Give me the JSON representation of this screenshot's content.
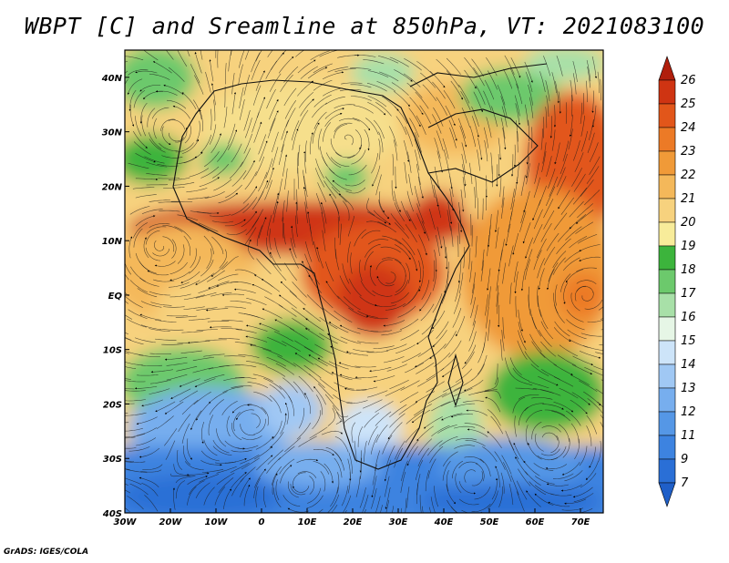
{
  "title": "WBPT [C] and Sreamline at 850hPa, VT: 2021083100",
  "credit": "GrADS: IGES/COLA",
  "map": {
    "lon_range": [
      -30,
      75
    ],
    "lat_range": [
      -40,
      45
    ],
    "lon_ticks": [
      {
        "value": -30,
        "label": "30W"
      },
      {
        "value": -20,
        "label": "20W"
      },
      {
        "value": -10,
        "label": "10W"
      },
      {
        "value": 0,
        "label": "0"
      },
      {
        "value": 10,
        "label": "10E"
      },
      {
        "value": 20,
        "label": "20E"
      },
      {
        "value": 30,
        "label": "30E"
      },
      {
        "value": 40,
        "label": "40E"
      },
      {
        "value": 50,
        "label": "50E"
      },
      {
        "value": 60,
        "label": "60E"
      },
      {
        "value": 70,
        "label": "70E"
      }
    ],
    "lat_ticks": [
      {
        "value": 40,
        "label": "40N"
      },
      {
        "value": 30,
        "label": "30N"
      },
      {
        "value": 20,
        "label": "20N"
      },
      {
        "value": 10,
        "label": "10N"
      },
      {
        "value": 0,
        "label": "EQ"
      },
      {
        "value": -10,
        "label": "10S"
      },
      {
        "value": -20,
        "label": "20S"
      },
      {
        "value": -30,
        "label": "30S"
      },
      {
        "value": -40,
        "label": "40S"
      }
    ]
  },
  "colorbar": {
    "levels": [
      {
        "label": "",
        "color": "#1f5fc8"
      },
      {
        "label": "7",
        "color": "#2a6fd6"
      },
      {
        "label": "9",
        "color": "#3d83e0"
      },
      {
        "label": "11",
        "color": "#5597e6"
      },
      {
        "label": "12",
        "color": "#77aeee"
      },
      {
        "label": "13",
        "color": "#a0c8f4"
      },
      {
        "label": "14",
        "color": "#cde4f9"
      },
      {
        "label": "15",
        "color": "#e6f6e6"
      },
      {
        "label": "16",
        "color": "#a8e0a8"
      },
      {
        "label": "17",
        "color": "#6cc96c"
      },
      {
        "label": "18",
        "color": "#3cb43c"
      },
      {
        "label": "19",
        "color": "#f8ec9a"
      },
      {
        "label": "20",
        "color": "#f7d27e"
      },
      {
        "label": "21",
        "color": "#f4b85a"
      },
      {
        "label": "22",
        "color": "#f09a38"
      },
      {
        "label": "23",
        "color": "#ec7a26"
      },
      {
        "label": "24",
        "color": "#e2561a"
      },
      {
        "label": "25",
        "color": "#cf3412"
      },
      {
        "label": "26",
        "color": "#b01e0c"
      }
    ]
  }
}
